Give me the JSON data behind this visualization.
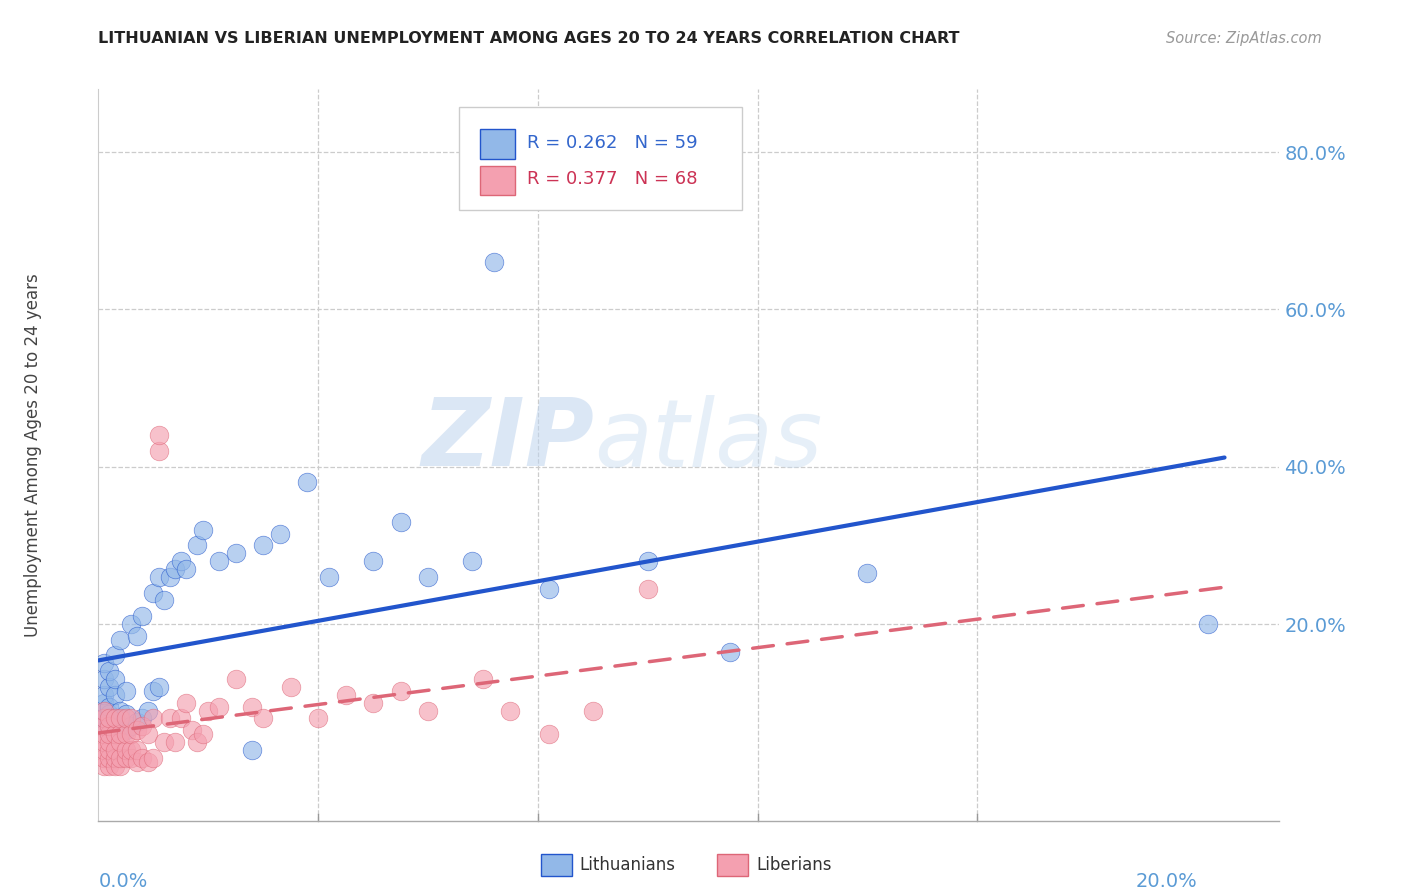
{
  "title": "LITHUANIAN VS LIBERIAN UNEMPLOYMENT AMONG AGES 20 TO 24 YEARS CORRELATION CHART",
  "source": "Source: ZipAtlas.com",
  "ylabel": "Unemployment Among Ages 20 to 24 years",
  "legend_r": [
    0.262,
    0.377
  ],
  "legend_n": [
    59,
    68
  ],
  "blue_color": "#92B8E8",
  "pink_color": "#F4A0B0",
  "blue_line_color": "#2255CC",
  "pink_line_color": "#DD6677",
  "xlim": [
    0.0,
    0.215
  ],
  "ylim": [
    -0.05,
    0.88
  ],
  "right_yticks": [
    0.8,
    0.6,
    0.4,
    0.2
  ],
  "xtick_minor": [
    0.04,
    0.08,
    0.12,
    0.16
  ],
  "watermark_zip": "ZIP",
  "watermark_atlas": "atlas",
  "blue_scatter_x": [
    0.001,
    0.001,
    0.001,
    0.001,
    0.001,
    0.001,
    0.001,
    0.002,
    0.002,
    0.002,
    0.002,
    0.002,
    0.002,
    0.003,
    0.003,
    0.003,
    0.003,
    0.003,
    0.004,
    0.004,
    0.004,
    0.005,
    0.005,
    0.005,
    0.006,
    0.006,
    0.007,
    0.007,
    0.008,
    0.008,
    0.009,
    0.01,
    0.01,
    0.011,
    0.011,
    0.012,
    0.013,
    0.014,
    0.015,
    0.016,
    0.018,
    0.019,
    0.022,
    0.025,
    0.028,
    0.03,
    0.033,
    0.038,
    0.042,
    0.05,
    0.055,
    0.06,
    0.068,
    0.072,
    0.082,
    0.1,
    0.115,
    0.14,
    0.202
  ],
  "blue_scatter_y": [
    0.07,
    0.08,
    0.09,
    0.1,
    0.11,
    0.13,
    0.15,
    0.06,
    0.075,
    0.085,
    0.095,
    0.12,
    0.14,
    0.065,
    0.08,
    0.11,
    0.13,
    0.16,
    0.07,
    0.09,
    0.18,
    0.065,
    0.085,
    0.115,
    0.07,
    0.2,
    0.075,
    0.185,
    0.08,
    0.21,
    0.09,
    0.115,
    0.24,
    0.12,
    0.26,
    0.23,
    0.26,
    0.27,
    0.28,
    0.27,
    0.3,
    0.32,
    0.28,
    0.29,
    0.04,
    0.3,
    0.315,
    0.38,
    0.26,
    0.28,
    0.33,
    0.26,
    0.28,
    0.66,
    0.245,
    0.28,
    0.165,
    0.265,
    0.2
  ],
  "pink_scatter_x": [
    0.001,
    0.001,
    0.001,
    0.001,
    0.001,
    0.001,
    0.001,
    0.001,
    0.002,
    0.002,
    0.002,
    0.002,
    0.002,
    0.002,
    0.002,
    0.003,
    0.003,
    0.003,
    0.003,
    0.003,
    0.004,
    0.004,
    0.004,
    0.004,
    0.004,
    0.005,
    0.005,
    0.005,
    0.005,
    0.006,
    0.006,
    0.006,
    0.006,
    0.007,
    0.007,
    0.007,
    0.008,
    0.008,
    0.009,
    0.009,
    0.01,
    0.01,
    0.011,
    0.011,
    0.012,
    0.013,
    0.014,
    0.015,
    0.016,
    0.017,
    0.018,
    0.019,
    0.02,
    0.022,
    0.025,
    0.028,
    0.03,
    0.035,
    0.04,
    0.045,
    0.05,
    0.055,
    0.06,
    0.07,
    0.075,
    0.082,
    0.09,
    0.1
  ],
  "pink_scatter_y": [
    0.02,
    0.03,
    0.04,
    0.05,
    0.06,
    0.07,
    0.08,
    0.09,
    0.02,
    0.03,
    0.04,
    0.05,
    0.06,
    0.07,
    0.08,
    0.02,
    0.03,
    0.04,
    0.06,
    0.08,
    0.02,
    0.03,
    0.05,
    0.06,
    0.08,
    0.03,
    0.04,
    0.06,
    0.08,
    0.03,
    0.04,
    0.06,
    0.08,
    0.025,
    0.04,
    0.065,
    0.03,
    0.07,
    0.025,
    0.06,
    0.03,
    0.08,
    0.42,
    0.44,
    0.05,
    0.08,
    0.05,
    0.08,
    0.1,
    0.065,
    0.05,
    0.06,
    0.09,
    0.095,
    0.13,
    0.095,
    0.08,
    0.12,
    0.08,
    0.11,
    0.1,
    0.115,
    0.09,
    0.13,
    0.09,
    0.06,
    0.09,
    0.245
  ]
}
